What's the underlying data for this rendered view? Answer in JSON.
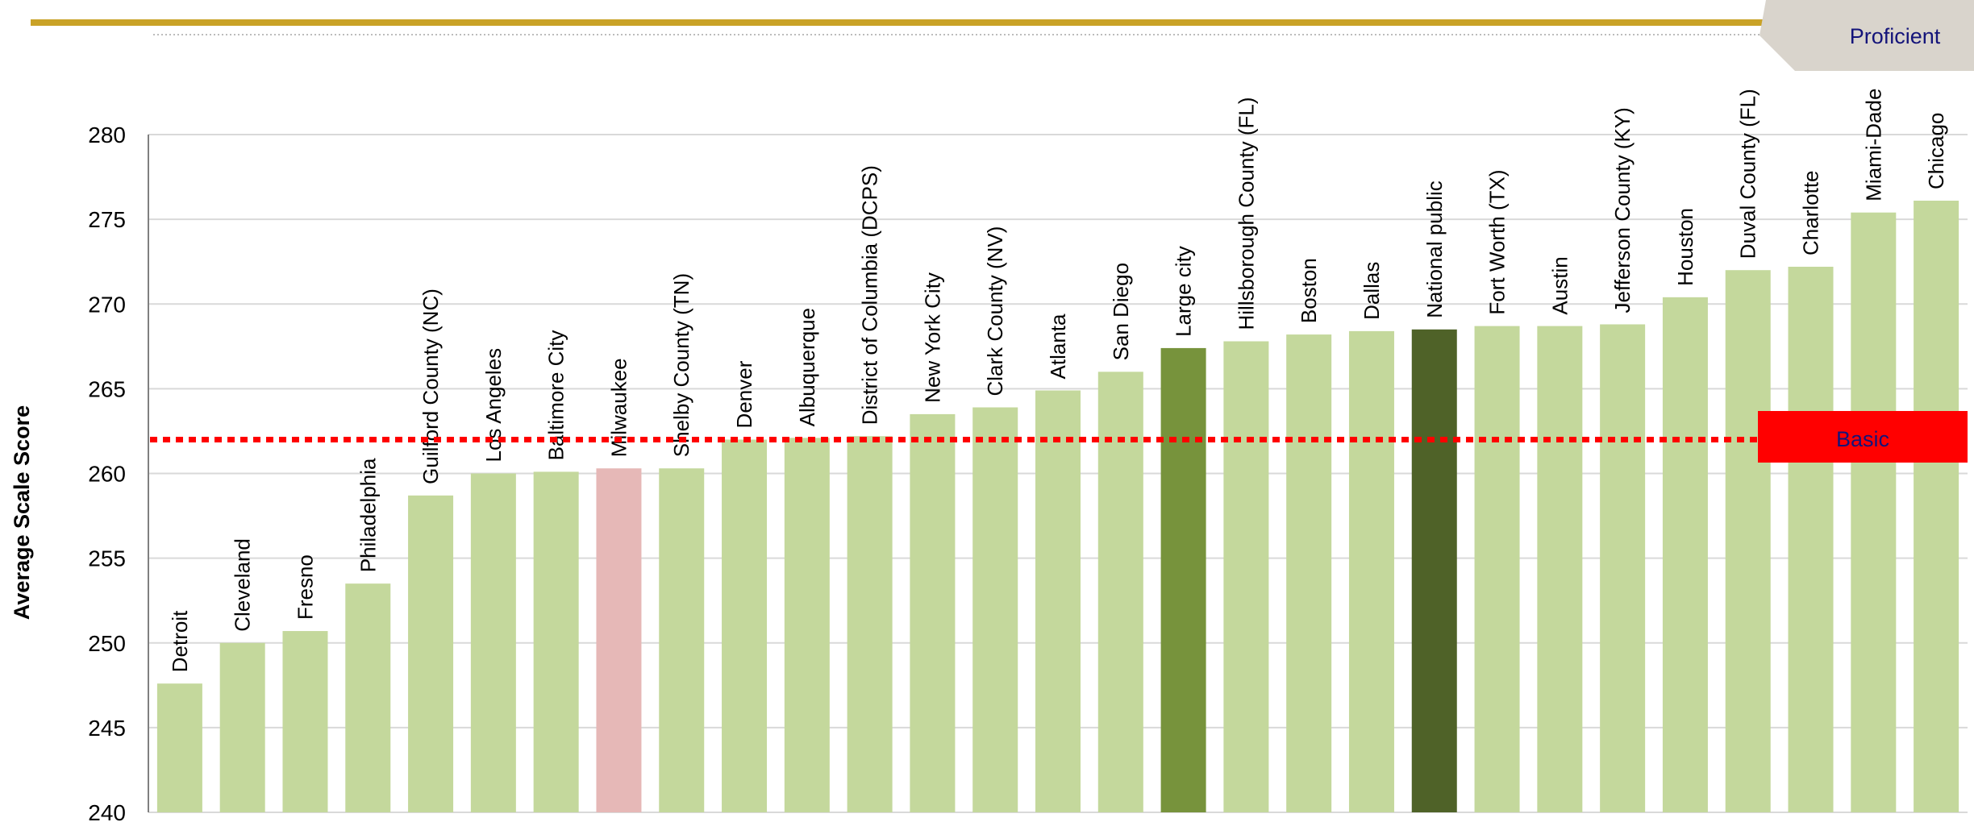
{
  "chart_data": {
    "type": "bar",
    "ylabel": "Average Scale Score",
    "xlabel": "",
    "ylim": [
      240,
      280
    ],
    "yticks": [
      240,
      245,
      250,
      255,
      260,
      265,
      270,
      275,
      280
    ],
    "grid": true,
    "categories": [
      "Detroit",
      "Cleveland",
      "Fresno",
      "Philadelphia",
      "Guilford County (NC)",
      "Los Angeles",
      "Baltimore City",
      "Milwaukee",
      "Shelby County (TN)",
      "Denver",
      "Albuquerque",
      "District of Columbia (DCPS)",
      "New York City",
      "Clark County (NV)",
      "Atlanta",
      "San Diego",
      "Large city",
      "Hillsborough County (FL)",
      "Boston",
      "Dallas",
      "National public",
      "Fort Worth (TX)",
      "Austin",
      "Jefferson County (KY)",
      "Houston",
      "Duval County (FL)",
      "Charlotte",
      "Miami-Dade",
      "Chicago"
    ],
    "values": [
      247.6,
      250.0,
      250.7,
      253.5,
      258.7,
      260.0,
      260.1,
      260.3,
      260.3,
      262.0,
      262.1,
      262.2,
      263.5,
      263.9,
      264.9,
      266.0,
      267.4,
      267.8,
      268.2,
      268.4,
      268.5,
      268.7,
      268.7,
      268.8,
      270.4,
      272.0,
      272.2,
      275.4,
      276.1
    ],
    "bar_colors": [
      "#c4d89c",
      "#c4d89c",
      "#c4d89c",
      "#c4d89c",
      "#c4d89c",
      "#c4d89c",
      "#c4d89c",
      "#e6b8b7",
      "#c4d89c",
      "#c4d89c",
      "#c4d89c",
      "#c4d89c",
      "#c4d89c",
      "#c4d89c",
      "#c4d89c",
      "#c4d89c",
      "#77933c",
      "#c4d89c",
      "#c4d89c",
      "#c4d89c",
      "#4f6228",
      "#c4d89c",
      "#c4d89c",
      "#c4d89c",
      "#c4d89c",
      "#c4d89c",
      "#c4d89c",
      "#c4d89c",
      "#c4d89c"
    ],
    "reference_lines": [
      {
        "label": "Basic",
        "value": 262,
        "color": "#ff0000",
        "style": "dotted"
      }
    ],
    "bands": [
      {
        "label": "Proficient",
        "color": "#d9d4cc",
        "text_color": "#14147a"
      },
      {
        "label": "Basic",
        "color": "#ff0000",
        "text_color": "#14147a"
      }
    ]
  },
  "colors": {
    "top_rule": "#c9a227",
    "grid": "#d9d9d9",
    "axis": "#808080"
  }
}
